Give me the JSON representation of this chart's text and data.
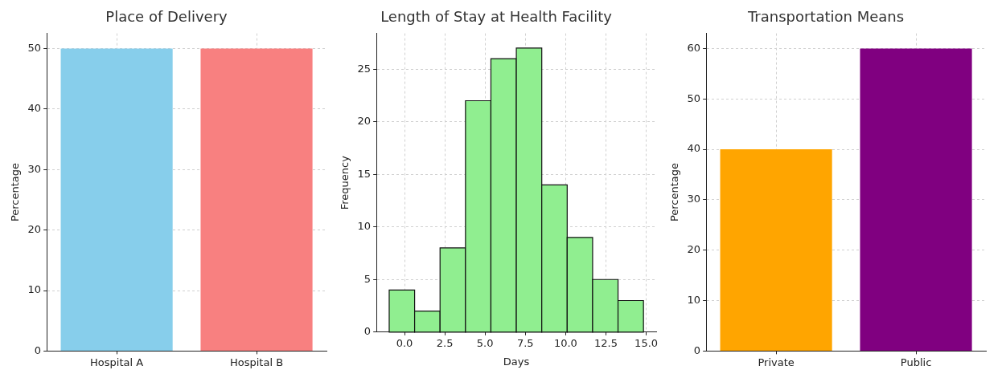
{
  "chart_data": [
    {
      "type": "bar",
      "title": "Place of Delivery",
      "categories": [
        "Hospital A",
        "Hospital B"
      ],
      "values": [
        50,
        50
      ],
      "colors": [
        "#87ceeb",
        "#f88080"
      ],
      "ylabel": "Percentage",
      "ylim": [
        0,
        52.5
      ],
      "yticks": [
        0,
        10,
        20,
        30,
        40,
        50
      ],
      "grid": true
    },
    {
      "type": "histogram",
      "title": "Length of Stay at Health Facility",
      "bins": [
        -0.95,
        0.628,
        2.206,
        3.784,
        5.362,
        6.94,
        8.518,
        10.096,
        11.674,
        13.252,
        14.83
      ],
      "values": [
        4,
        2,
        8,
        22,
        26,
        27,
        14,
        9,
        5,
        3
      ],
      "color": "#90ee90",
      "xlabel": "Days",
      "ylabel": "Frequency",
      "xlim": [
        -1.74,
        15.62
      ],
      "xticks": [
        {
          "value": 0,
          "label": "0.0"
        },
        {
          "value": 2.5,
          "label": "2.5"
        },
        {
          "value": 5,
          "label": "5.0"
        },
        {
          "value": 7.5,
          "label": "7.5"
        },
        {
          "value": 10,
          "label": "10.0"
        },
        {
          "value": 12.5,
          "label": "12.5"
        },
        {
          "value": 15,
          "label": "15.0"
        }
      ],
      "ylim": [
        0,
        28.4
      ],
      "yticks": [
        0,
        5,
        10,
        15,
        20,
        25
      ],
      "grid": true
    },
    {
      "type": "bar",
      "title": "Transportation Means",
      "categories": [
        "Private",
        "Public"
      ],
      "values": [
        40,
        60
      ],
      "colors": [
        "#ffa500",
        "#800080"
      ],
      "ylabel": "Percentage",
      "ylim": [
        0,
        63
      ],
      "yticks": [
        0,
        10,
        20,
        30,
        40,
        50,
        60
      ],
      "grid": true
    }
  ]
}
